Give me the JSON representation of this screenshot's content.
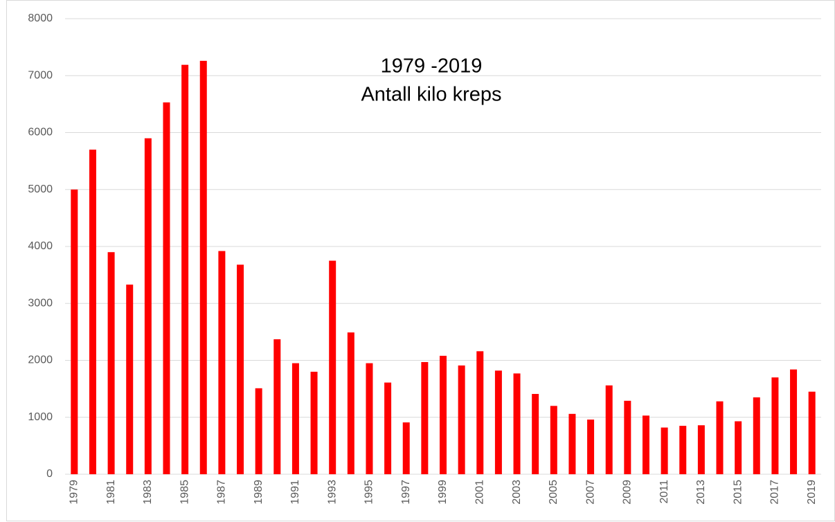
{
  "chart_data": {
    "type": "bar",
    "title": "1979 -2019",
    "subtitle": "Antall kilo kreps",
    "categories": [
      "1979",
      null,
      "1981",
      null,
      "1983",
      null,
      "1985",
      null,
      "1987",
      null,
      "1989",
      null,
      "1991",
      null,
      "1993",
      null,
      "1995",
      null,
      "1997",
      null,
      "1999",
      null,
      "2001",
      null,
      "2003",
      null,
      "2005",
      null,
      "2007",
      null,
      "2009",
      null,
      "2011",
      null,
      "2013",
      null,
      "2015",
      null,
      "2017",
      null,
      "2019"
    ],
    "values": [
      5000,
      5700,
      3900,
      3330,
      5900,
      6530,
      7190,
      7260,
      3920,
      3680,
      1510,
      2370,
      1950,
      1800,
      3750,
      2490,
      1950,
      1610,
      910,
      1970,
      2080,
      1910,
      2160,
      1820,
      1770,
      1410,
      1200,
      1060,
      960,
      1560,
      1290,
      1030,
      820,
      850,
      860,
      1280,
      930,
      1350,
      1700,
      1840,
      1450
    ],
    "color": "#ff0000",
    "ylim": [
      0,
      8000
    ],
    "yticks": [
      0,
      1000,
      2000,
      3000,
      4000,
      5000,
      6000,
      7000,
      8000
    ],
    "grid": true
  }
}
